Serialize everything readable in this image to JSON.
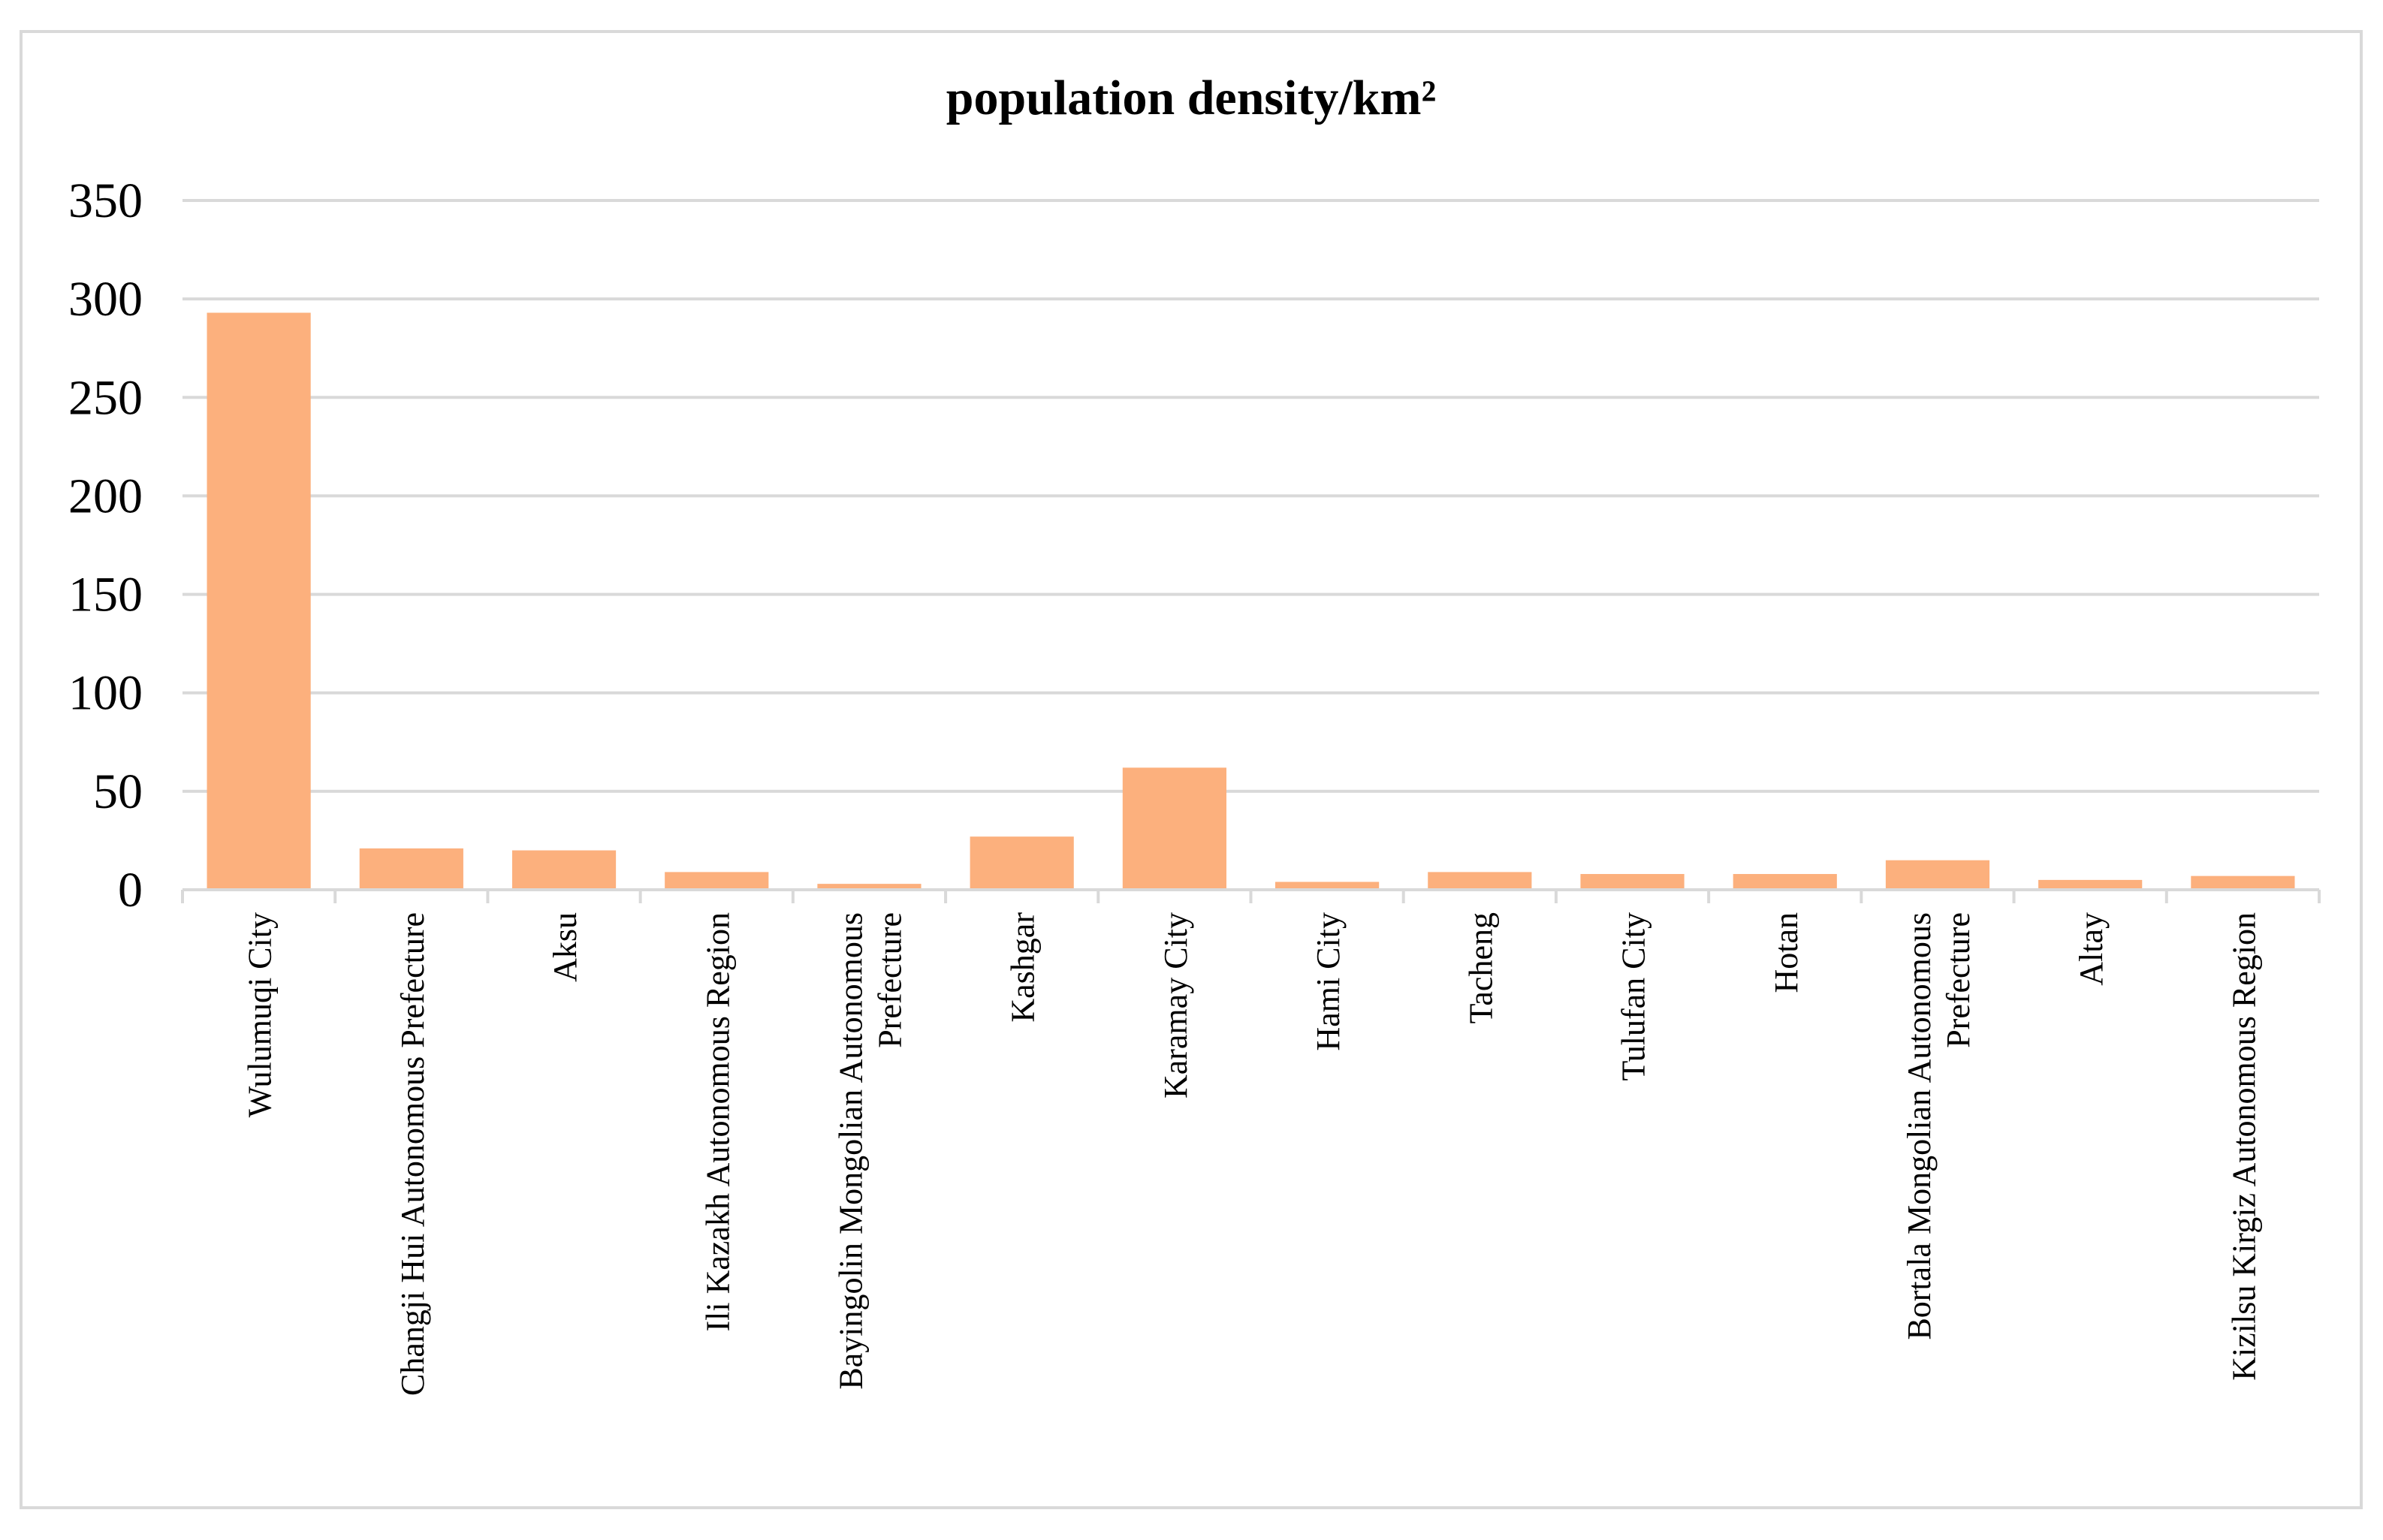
{
  "chart_data": {
    "type": "bar",
    "title": "population density/km²",
    "xlabel": "",
    "ylabel": "",
    "ylim": [
      0,
      350
    ],
    "yticks": [
      0,
      50,
      100,
      150,
      200,
      250,
      300,
      350
    ],
    "grid": true,
    "legend": "none",
    "bar_color": "#fcb07d",
    "grid_color": "#d9d9d9",
    "categories": [
      [
        "Wulumuqi City"
      ],
      [
        "Changji Hui Autonomous Prefecture"
      ],
      [
        "Aksu"
      ],
      [
        "Ili Kazakh Autonomous Region"
      ],
      [
        "Bayingolin Mongolian Autonomous",
        "Prefecture"
      ],
      [
        "Kashgar"
      ],
      [
        "Karamay City"
      ],
      [
        "Hami City"
      ],
      [
        "Tacheng"
      ],
      [
        "Tulufan City"
      ],
      [
        "Hotan"
      ],
      [
        "Bortala Mongolian Autonomous",
        "Prefecture"
      ],
      [
        "Altay"
      ],
      [
        "Kizilsu Kirgiz Autonomous Region"
      ]
    ],
    "values": [
      293,
      21,
      20,
      9,
      3,
      27,
      62,
      4,
      9,
      8,
      8,
      15,
      5,
      7
    ]
  }
}
